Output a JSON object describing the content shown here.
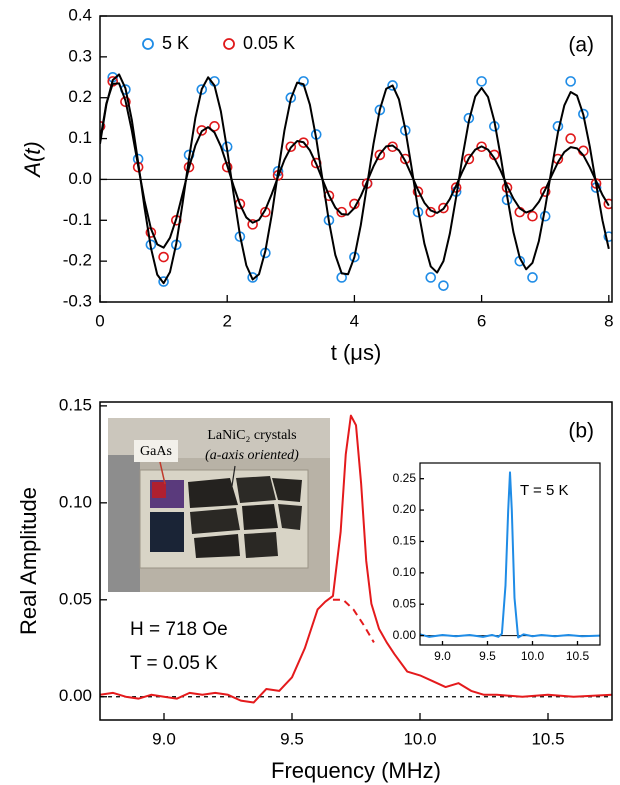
{
  "chart_data": [
    {
      "type": "scatter",
      "xlabel": "t (μs)",
      "ylabel": "A(t)",
      "panel_label": "(a)",
      "legend": "upper left",
      "xlim": [
        0,
        8.05
      ],
      "ylim": [
        -0.3,
        0.4
      ],
      "xticks": [
        0,
        2,
        4,
        6,
        8
      ],
      "yticks": [
        -0.3,
        -0.2,
        -0.1,
        {
          "value": 0,
          "label": "0.0"
        },
        0.1,
        0.2,
        0.3,
        0.4
      ],
      "hline": 0,
      "x": [
        0,
        0.2,
        0.4,
        0.6,
        0.8,
        1.0,
        1.2,
        1.4,
        1.6,
        1.8,
        2.0,
        2.2,
        2.4,
        2.6,
        2.8,
        3.0,
        3.2,
        3.4,
        3.6,
        3.8,
        4.0,
        4.2,
        4.4,
        4.6,
        4.8,
        5.0,
        5.2,
        5.4,
        5.6,
        5.8,
        6.0,
        6.2,
        6.4,
        6.6,
        6.8,
        7.0,
        7.2,
        7.4,
        7.6,
        7.8,
        8.0
      ],
      "series": [
        {
          "name": "5 K",
          "color": "#1f8ce6",
          "values": [
            0.13,
            0.25,
            0.22,
            0.05,
            -0.16,
            -0.25,
            -0.16,
            0.06,
            0.22,
            0.24,
            0.08,
            -0.14,
            -0.24,
            -0.18,
            0.02,
            0.2,
            0.24,
            0.11,
            -0.1,
            -0.24,
            -0.19,
            -0.01,
            0.17,
            0.23,
            0.12,
            -0.08,
            -0.24,
            -0.26,
            -0.03,
            0.15,
            0.24,
            0.13,
            -0.05,
            -0.2,
            -0.24,
            -0.09,
            0.13,
            0.24,
            0.16,
            -0.02,
            -0.14
          ]
        },
        {
          "name": "0.05 K",
          "color": "#e0191b",
          "values": [
            0.13,
            0.24,
            0.19,
            0.03,
            -0.13,
            -0.19,
            -0.1,
            0.03,
            0.12,
            0.13,
            0.03,
            -0.06,
            -0.11,
            -0.08,
            0.01,
            0.08,
            0.09,
            0.04,
            -0.04,
            -0.08,
            -0.06,
            -0.01,
            0.06,
            0.08,
            0.05,
            -0.03,
            -0.08,
            -0.07,
            -0.02,
            0.05,
            0.08,
            0.06,
            -0.02,
            -0.08,
            -0.09,
            -0.03,
            0.05,
            0.1,
            0.07,
            -0.01,
            -0.06
          ]
        }
      ],
      "fit_x": [
        0,
        0.1,
        0.2,
        0.3,
        0.4,
        0.5,
        0.6,
        0.7,
        0.8,
        0.9,
        1.0,
        1.1,
        1.2,
        1.3,
        1.4,
        1.5,
        1.6,
        1.7,
        1.8,
        1.9,
        2.0,
        2.1,
        2.2,
        2.3,
        2.4,
        2.5,
        2.6,
        2.7,
        2.8,
        2.9,
        3.0,
        3.1,
        3.2,
        3.3,
        3.4,
        3.5,
        3.6,
        3.7,
        3.8,
        3.9,
        4.0,
        4.1,
        4.2,
        4.3,
        4.4,
        4.5,
        4.6,
        4.7,
        4.8,
        4.9,
        5.0,
        5.1,
        5.2,
        5.3,
        5.4,
        5.5,
        5.6,
        5.7,
        5.8,
        5.9,
        6.0,
        6.1,
        6.2,
        6.3,
        6.4,
        6.5,
        6.6,
        6.7,
        6.8,
        6.9,
        7.0,
        7.1,
        7.2,
        7.3,
        7.4,
        7.5,
        7.6,
        7.7,
        7.8,
        7.9,
        8.0
      ],
      "fits": [
        {
          "color": "#000000",
          "values": [
            0.087,
            0.183,
            0.243,
            0.257,
            0.223,
            0.146,
            0.042,
            -0.069,
            -0.167,
            -0.233,
            -0.254,
            -0.227,
            -0.157,
            -0.057,
            0.052,
            0.151,
            0.221,
            0.25,
            0.23,
            0.167,
            0.072,
            -0.035,
            -0.136,
            -0.21,
            -0.245,
            -0.232,
            -0.175,
            -0.087,
            0.018,
            0.12,
            0.197,
            0.237,
            0.233,
            0.183,
            0.1,
            -0.002,
            -0.103,
            -0.185,
            -0.23,
            -0.232,
            -0.19,
            -0.112,
            -0.013,
            0.087,
            0.171,
            0.222,
            0.23,
            0.196,
            0.123,
            0.028,
            -0.072,
            -0.157,
            -0.213,
            -0.228,
            -0.2,
            -0.133,
            -0.043,
            0.056,
            0.143,
            0.203,
            0.224,
            0.202,
            0.143,
            0.056,
            -0.04,
            -0.129,
            -0.192,
            -0.22,
            -0.204,
            -0.151,
            -0.069,
            0.025,
            0.115,
            0.181,
            0.214,
            0.205,
            0.158,
            0.081,
            -0.011,
            -0.1,
            -0.17
          ]
        },
        {
          "color": "#000000",
          "values": [
            0.094,
            0.186,
            0.234,
            0.235,
            0.193,
            0.12,
            0.033,
            -0.052,
            -0.12,
            -0.159,
            -0.167,
            -0.143,
            -0.096,
            -0.034,
            0.029,
            0.083,
            0.118,
            0.128,
            0.115,
            0.081,
            0.034,
            -0.016,
            -0.061,
            -0.093,
            -0.106,
            -0.099,
            -0.074,
            -0.036,
            0.007,
            0.048,
            0.078,
            0.094,
            0.091,
            0.071,
            0.038,
            -0.001,
            -0.039,
            -0.069,
            -0.085,
            -0.086,
            -0.07,
            -0.041,
            -0.005,
            0.032,
            0.062,
            0.081,
            0.083,
            0.071,
            0.045,
            0.01,
            -0.026,
            -0.057,
            -0.076,
            -0.082,
            -0.072,
            -0.048,
            -0.015,
            0.02,
            0.052,
            0.073,
            0.081,
            0.073,
            0.052,
            0.021,
            -0.015,
            -0.047,
            -0.071,
            -0.081,
            -0.075,
            -0.055,
            -0.025,
            0.009,
            0.042,
            0.067,
            0.079,
            0.076,
            0.059,
            0.03,
            -0.004,
            -0.038,
            -0.064
          ]
        }
      ]
    },
    {
      "type": "line",
      "xlabel": "Frequency (MHz)",
      "ylabel": "Real Amplitude",
      "panel_label": "(b)",
      "xlim": [
        8.75,
        10.75
      ],
      "ylim": [
        -0.012,
        0.152
      ],
      "xticks": [
        {
          "value": 9.0,
          "label": "9.0"
        },
        {
          "value": 9.5,
          "label": "9.5"
        },
        {
          "value": 10.0,
          "label": "10.0"
        },
        {
          "value": 10.5,
          "label": "10.5"
        }
      ],
      "yticks": [
        {
          "value": 0,
          "label": "0.00"
        },
        {
          "value": 0.05,
          "label": "0.05"
        },
        {
          "value": 0.1,
          "label": "0.10"
        },
        {
          "value": 0.15,
          "label": "0.15"
        }
      ],
      "hline": 0,
      "hline_dash": true,
      "annotations": [
        "H = 718 Oe",
        "T = 0.05 K"
      ],
      "photo_labels": [
        "GaAs",
        "LaNiC₂ crystals",
        "(a-axis oriented)"
      ],
      "series": [
        {
          "color": "#e41a1c",
          "x": [
            8.75,
            8.8,
            8.85,
            8.9,
            8.95,
            9.0,
            9.05,
            9.1,
            9.15,
            9.2,
            9.25,
            9.3,
            9.35,
            9.4,
            9.45,
            9.5,
            9.55,
            9.6,
            9.63,
            9.66,
            9.69,
            9.71,
            9.73,
            9.75,
            9.77,
            9.79,
            9.81,
            9.84,
            9.87,
            9.9,
            9.95,
            10.0,
            10.05,
            10.1,
            10.15,
            10.2,
            10.25,
            10.3,
            10.4,
            10.5,
            10.6,
            10.75
          ],
          "values": [
            0.001,
            0.002,
            0,
            -0.001,
            0.001,
            0,
            -0.001,
            0.002,
            0.001,
            0.002,
            0.001,
            -0.002,
            -0.003,
            0.004,
            0.003,
            0.01,
            0.025,
            0.045,
            0.049,
            0.052,
            0.085,
            0.125,
            0.145,
            0.14,
            0.11,
            0.07,
            0.048,
            0.035,
            0.028,
            0.022,
            0.013,
            0.011,
            0.008,
            0.005,
            0.007,
            0.003,
            0.001,
            0.001,
            0,
            0.001,
            0,
            0.001
          ]
        },
        {
          "color": "#e41a1c",
          "dash": true,
          "x": [
            9.66,
            9.7,
            9.74,
            9.78,
            9.82
          ],
          "values": [
            0.05,
            0.05,
            0.045,
            0.037,
            0.028
          ]
        }
      ]
    },
    {
      "type": "line",
      "inset": true,
      "xlim": [
        8.75,
        10.75
      ],
      "ylim": [
        -0.015,
        0.275
      ],
      "xticks": [
        {
          "value": 9.0,
          "label": "9.0"
        },
        {
          "value": 9.5,
          "label": "9.5"
        },
        {
          "value": 10.0,
          "label": "10.0"
        },
        {
          "value": 10.5,
          "label": "10.5"
        }
      ],
      "yticks": [
        {
          "value": 0,
          "label": "0.00"
        },
        {
          "value": 0.05,
          "label": "0.05"
        },
        {
          "value": 0.1,
          "label": "0.10"
        },
        {
          "value": 0.15,
          "label": "0.15"
        },
        {
          "value": 0.2,
          "label": "0.20"
        },
        {
          "value": 0.25,
          "label": "0.25"
        }
      ],
      "hline": 0,
      "annotations": [
        "T = 5 K"
      ],
      "series": [
        {
          "color": "#1f8ce6",
          "x": [
            8.75,
            8.85,
            9.0,
            9.15,
            9.3,
            9.45,
            9.55,
            9.62,
            9.66,
            9.7,
            9.73,
            9.75,
            9.77,
            9.8,
            9.84,
            9.9,
            10.0,
            10.1,
            10.25,
            10.4,
            10.55,
            10.75
          ],
          "values": [
            0.002,
            -0.002,
            0.001,
            -0.001,
            0.001,
            -0.002,
            0.001,
            -0.002,
            0.003,
            0.08,
            0.2,
            0.26,
            0.2,
            0.06,
            -0.003,
            0.002,
            -0.001,
            0.001,
            -0.001,
            0.001,
            -0.001,
            0
          ]
        }
      ]
    }
  ]
}
